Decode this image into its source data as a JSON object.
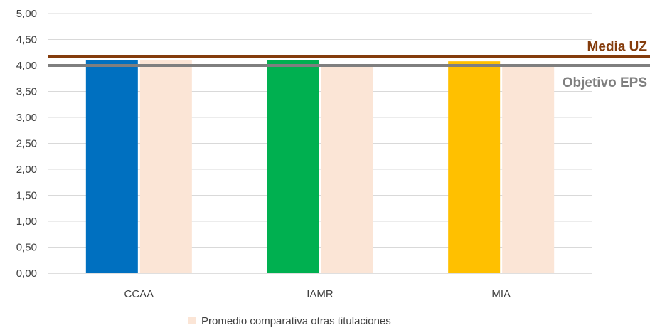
{
  "chart_data": {
    "type": "bar",
    "categories": [
      "CCAA",
      "IAMR",
      "MIA"
    ],
    "series": [
      {
        "key": "titulacion",
        "values": [
          4.1,
          4.1,
          4.08
        ],
        "colors": [
          "#0070c0",
          "#00b050",
          "#ffc000"
        ]
      },
      {
        "key": "promedio",
        "name": "Promedio comparativa otras titulaciones",
        "values": [
          4.1,
          4.0,
          4.0
        ],
        "color": "#fbe5d6"
      }
    ],
    "reference_lines": [
      {
        "label": "Media UZ",
        "value": 4.17,
        "color": "#843c0c"
      },
      {
        "label": "Objetivo EPS",
        "value": 4.0,
        "color": "#7f7f7f"
      }
    ],
    "ylim": [
      0,
      5
    ],
    "yticks": [
      "0,00",
      "0,50",
      "1,00",
      "1,50",
      "2,00",
      "2,50",
      "3,00",
      "3,50",
      "4,00",
      "4,50",
      "5,00"
    ],
    "ytick_values": [
      0,
      0.5,
      1,
      1.5,
      2,
      2.5,
      3,
      3.5,
      4,
      4.5,
      5
    ],
    "grid": true,
    "legend": {
      "position": "bottom",
      "entries": [
        "Promedio comparativa otras titulaciones"
      ]
    },
    "gridline_color": "#d9d9d9",
    "axis_color": "#bfbfbf"
  }
}
